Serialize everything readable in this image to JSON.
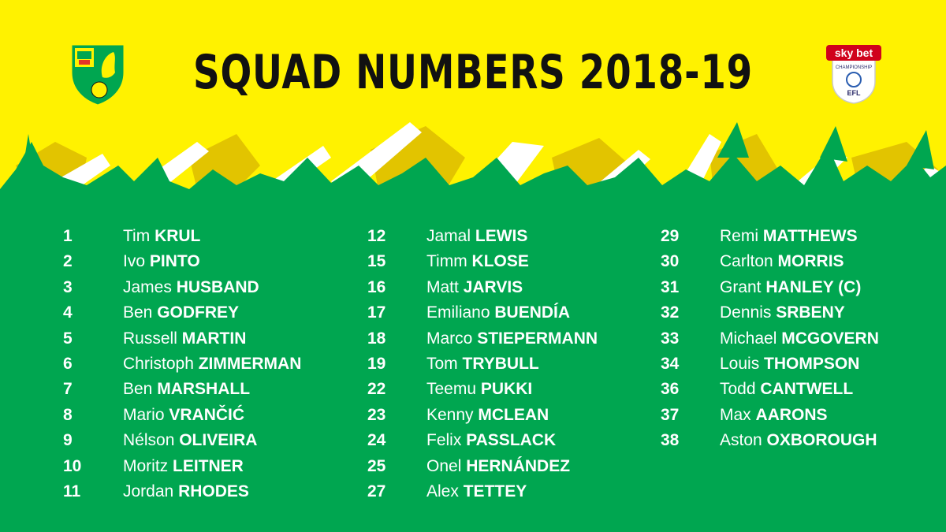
{
  "title": "SQUAD NUMBERS 2018-19",
  "colors": {
    "yellow": "#FFF200",
    "green": "#00A650",
    "white": "#FFFFFF",
    "text_dark": "#111111"
  },
  "crest": {
    "icon": "norwich-city-crest-icon"
  },
  "league_logo": {
    "icon": "sky-bet-championship-efl-logo",
    "line1": "sky bet",
    "line2": "CHAMPIONSHIP",
    "line3": "EFL"
  },
  "columns": [
    [
      {
        "number": "1",
        "first": "Tim",
        "last": "KRUL"
      },
      {
        "number": "2",
        "first": "Ivo",
        "last": "PINTO"
      },
      {
        "number": "3",
        "first": "James",
        "last": "HUSBAND"
      },
      {
        "number": "4",
        "first": "Ben",
        "last": "GODFREY"
      },
      {
        "number": "5",
        "first": "Russell",
        "last": "MARTIN"
      },
      {
        "number": "6",
        "first": "Christoph",
        "last": "ZIMMERMAN"
      },
      {
        "number": "7",
        "first": "Ben",
        "last": "MARSHALL"
      },
      {
        "number": "8",
        "first": "Mario",
        "last": "VRANČIĆ"
      },
      {
        "number": "9",
        "first": "Nélson",
        "last": "OLIVEIRA"
      },
      {
        "number": "10",
        "first": "Moritz",
        "last": "LEITNER"
      },
      {
        "number": "11",
        "first": "Jordan",
        "last": "RHODES"
      }
    ],
    [
      {
        "number": "12",
        "first": "Jamal",
        "last": "LEWIS"
      },
      {
        "number": "15",
        "first": "Timm",
        "last": "KLOSE"
      },
      {
        "number": "16",
        "first": "Matt",
        "last": "JARVIS"
      },
      {
        "number": "17",
        "first": "Emiliano",
        "last": "BUENDÍA"
      },
      {
        "number": "18",
        "first": "Marco",
        "last": "STIEPERMANN"
      },
      {
        "number": "19",
        "first": "Tom",
        "last": "TRYBULL"
      },
      {
        "number": "22",
        "first": "Teemu",
        "last": "PUKKI"
      },
      {
        "number": "23",
        "first": "Kenny",
        "last": "MCLEAN"
      },
      {
        "number": "24",
        "first": "Felix",
        "last": "PASSLACK"
      },
      {
        "number": "25",
        "first": "Onel",
        "last": "HERNÁNDEZ"
      },
      {
        "number": "27",
        "first": "Alex",
        "last": "TETTEY"
      }
    ],
    [
      {
        "number": "29",
        "first": "Remi",
        "last": "MATTHEWS"
      },
      {
        "number": "30",
        "first": "Carlton",
        "last": "MORRIS"
      },
      {
        "number": "31",
        "first": "Grant",
        "last": "HANLEY (C)"
      },
      {
        "number": "32",
        "first": "Dennis",
        "last": "SRBENY"
      },
      {
        "number": "33",
        "first": "Michael",
        "last": "MCGOVERN"
      },
      {
        "number": "34",
        "first": "Louis",
        "last": "THOMPSON"
      },
      {
        "number": "36",
        "first": "Todd",
        "last": "CANTWELL"
      },
      {
        "number": "37",
        "first": "Max",
        "last": "AARONS"
      },
      {
        "number": "38",
        "first": "Aston",
        "last": "OXBOROUGH"
      }
    ]
  ]
}
